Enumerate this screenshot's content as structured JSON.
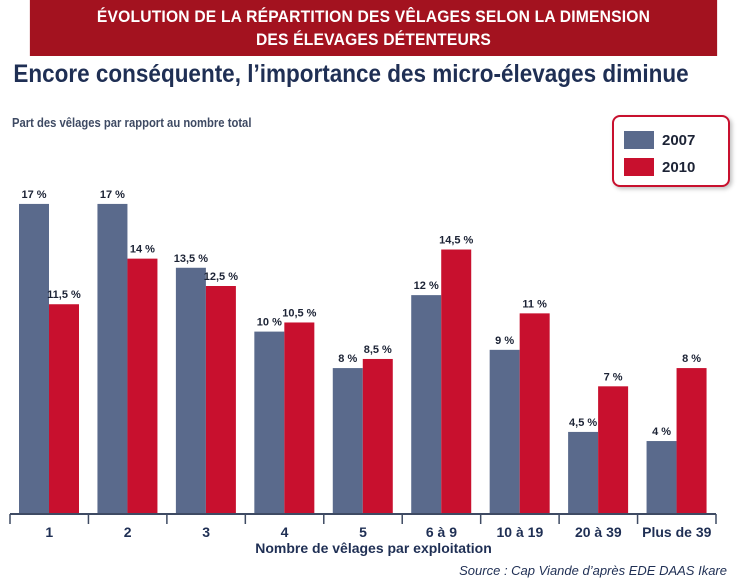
{
  "header": {
    "line1": "ÉVOLUTION DE LA RÉPARTITION DES VÊLAGES SELON LA DIMENSION",
    "line2": "DES ÉLEVAGES DÉTENTEURS"
  },
  "source": "Source : Cap Viande d’après EDE DAAS Ikare",
  "colors": {
    "banner": "#a3121f",
    "s2007": "#5a6a8c",
    "s2010": "#c8102e"
  },
  "chart_data": {
    "type": "bar",
    "title": "Encore conséquente, l’importance des micro-élevages diminue",
    "ylabel": "Part des vêlages par rapport au nombre total",
    "xlabel": "Nombre de vêlages par exploitation",
    "categories": [
      "1",
      "2",
      "3",
      "4",
      "5",
      "6 à 9",
      "10 à 19",
      "20 à 39",
      "Plus de 39"
    ],
    "ylim": [
      0,
      18
    ],
    "grid": false,
    "legend_position": "top-right",
    "series": [
      {
        "name": "2007",
        "values": [
          17,
          17,
          13.5,
          10,
          8,
          12,
          9,
          4.5,
          4
        ],
        "labels": [
          "17 %",
          "17 %",
          "13,5 %",
          "10 %",
          "8 %",
          "12 %",
          "9 %",
          "4,5 %",
          "4 %"
        ]
      },
      {
        "name": "2010",
        "values": [
          11.5,
          14,
          12.5,
          10.5,
          8.5,
          14.5,
          11,
          7,
          8
        ],
        "labels": [
          "11,5 %",
          "14 %",
          "12,5 %",
          "10,5 %",
          "8,5 %",
          "14,5 %",
          "11 %",
          "7 %",
          "8 %"
        ]
      }
    ]
  }
}
